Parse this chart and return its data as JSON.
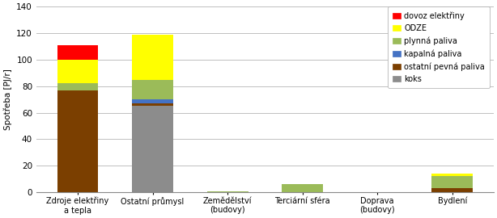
{
  "categories": [
    "Zdroje elektřiny\na tepla",
    "Ostatní průmysl",
    "Zemědělství\n(budovy)",
    "Terciární sféra",
    "Doprava\n(budovy)",
    "Bydlení"
  ],
  "series": {
    "koks": [
      0,
      65,
      0,
      0,
      0,
      0
    ],
    "ostatni_pevna": [
      77,
      2,
      0,
      0,
      0,
      3
    ],
    "kapalna": [
      0,
      3,
      0,
      0,
      0,
      0
    ],
    "plynna": [
      5,
      15,
      1,
      6,
      0,
      9
    ],
    "ODZE": [
      18,
      34,
      0,
      0,
      0,
      2
    ],
    "dovoz": [
      11,
      0,
      0,
      0,
      0,
      0
    ]
  },
  "colors": {
    "koks": "#8C8C8C",
    "ostatni_pevna": "#7B3F00",
    "kapalna": "#4472C4",
    "plynna": "#9BBB59",
    "ODZE": "#FFFF00",
    "dovoz": "#FF0000"
  },
  "legend_labels": {
    "dovoz": "dovoz elektřiny",
    "ODZE": "ODZE",
    "plynna": "plynná paliva",
    "kapalna": "kapalná paliva",
    "ostatni_pevna": "ostatní pevná paliva",
    "koks": "koks"
  },
  "ylabel": "Spotřeba [PJ/r]",
  "ylim": [
    0,
    140
  ],
  "yticks": [
    0,
    20,
    40,
    60,
    80,
    100,
    120,
    140
  ],
  "grid_color": "#C0C0C0"
}
